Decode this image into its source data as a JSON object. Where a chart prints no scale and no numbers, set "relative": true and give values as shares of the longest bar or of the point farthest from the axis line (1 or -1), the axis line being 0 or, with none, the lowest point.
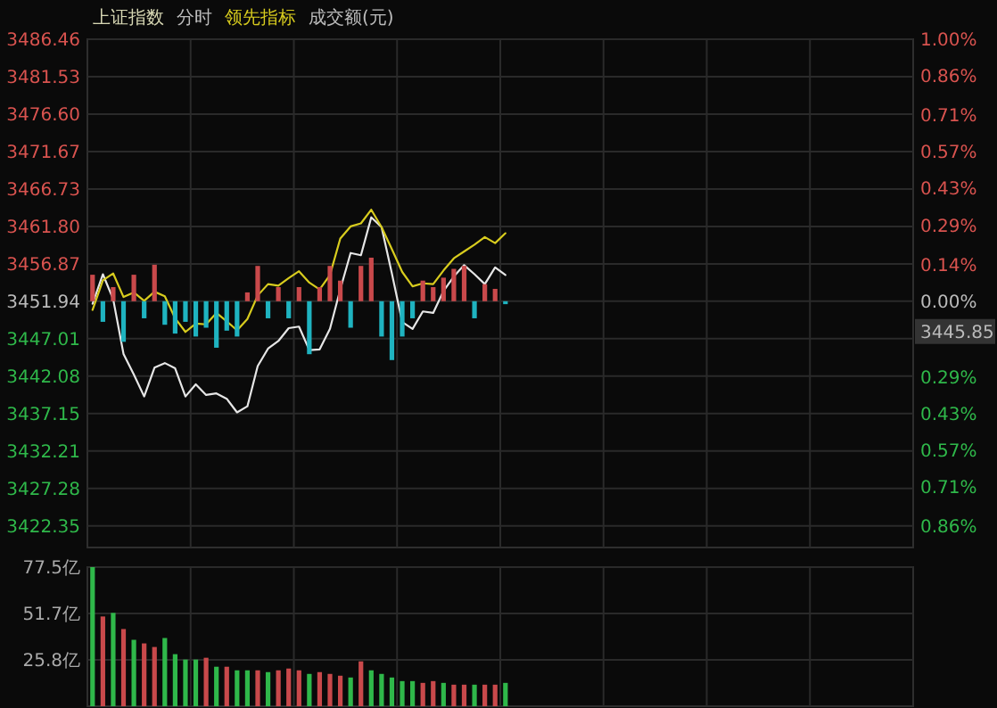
{
  "chart_data": [
    {
      "type": "line",
      "title": "上证指数",
      "subtitle": "分时",
      "grid": true,
      "categories": [
        null,
        null,
        null,
        null,
        null,
        null,
        null,
        null,
        null,
        null,
        null,
        null,
        null,
        null,
        null,
        null,
        null,
        null,
        null,
        null,
        null,
        null,
        null,
        null,
        null,
        null,
        null,
        null,
        null,
        null,
        null,
        null,
        null,
        null,
        null,
        null,
        null,
        null,
        null,
        null,
        null,
        null,
        null,
        null,
        null,
        null,
        null,
        null,
        null,
        null,
        null,
        null,
        null,
        null,
        null,
        null,
        null,
        null,
        null,
        null,
        null,
        null,
        null,
        null,
        null,
        null,
        null,
        null,
        null,
        null,
        null,
        null,
        null,
        null,
        null,
        null,
        null,
        null,
        null,
        null
      ],
      "ylim": [
        3419.5,
        3486.46
      ],
      "yticks": [
        {
          "value": 3486.46,
          "label": "3486.46"
        },
        {
          "value": 3481.53,
          "label": "3481.53"
        },
        {
          "value": 3476.6,
          "label": "3476.60"
        },
        {
          "value": 3471.67,
          "label": "3471.67"
        },
        {
          "value": 3466.73,
          "label": "3466.73"
        },
        {
          "value": 3461.8,
          "label": "3461.80"
        },
        {
          "value": 3456.87,
          "label": "3456.87"
        },
        {
          "value": 3451.94,
          "label": "3451.94"
        },
        {
          "value": 3447.01,
          "label": "3447.01"
        },
        {
          "value": 3442.08,
          "label": "3442.08"
        },
        {
          "value": 3437.15,
          "label": "3437.15"
        },
        {
          "value": 3432.21,
          "label": "3432.21"
        },
        {
          "value": 3427.28,
          "label": "3427.28"
        },
        {
          "value": 3422.35,
          "label": "3422.35"
        }
      ],
      "y2lim": [
        -0.94,
        1.0
      ],
      "y2ticks": [
        {
          "value": 1.0,
          "label": "1.00%"
        },
        {
          "value": 0.86,
          "label": "0.86%"
        },
        {
          "value": 0.71,
          "label": "0.71%"
        },
        {
          "value": 0.57,
          "label": "0.57%"
        },
        {
          "value": 0.43,
          "label": "0.43%"
        },
        {
          "value": 0.29,
          "label": "0.29%"
        },
        {
          "value": 0.14,
          "label": "0.14%"
        },
        {
          "value": 0.0,
          "label": "0.00%"
        },
        {
          "value": -0.29,
          "label": "0.29%"
        },
        {
          "value": -0.43,
          "label": "0.43%"
        },
        {
          "value": -0.57,
          "label": "0.57%"
        },
        {
          "value": -0.71,
          "label": "0.71%"
        },
        {
          "value": -0.86,
          "label": "0.86%"
        }
      ],
      "annotations": [
        "3445.85",
        "成交额(元)"
      ],
      "series": [
        {
          "color": "#e6e6e6",
          "values": [
            3451.6,
            3455.5,
            3452.2,
            3445.0,
            3442.3,
            3439.4,
            3443.2,
            3443.8,
            3443.1,
            3439.4,
            3441.0,
            3439.6,
            3439.8,
            3439.1,
            3437.3,
            3438.1,
            3443.4,
            3445.7,
            3446.7,
            3448.4,
            3448.6,
            3445.5,
            3445.6,
            3448.3,
            3453.5,
            3458.3,
            3458.0,
            3463.0,
            3461.7,
            3455.6,
            3449.2,
            3448.3,
            3450.6,
            3450.4,
            3453.3,
            3455.2,
            3456.7,
            3455.5,
            3454.2,
            3456.4,
            3455.4,
            null,
            null,
            null,
            null,
            null,
            null,
            null,
            null,
            null,
            null,
            null,
            null,
            null,
            null,
            null,
            null,
            null,
            null,
            null,
            null,
            null,
            null,
            null,
            null,
            null,
            null,
            null,
            null,
            null,
            null,
            null,
            null,
            null,
            null,
            null,
            null,
            null,
            null,
            null
          ]
        },
        {
          "name": "领先指标",
          "color": "#d8cc1e",
          "values": [
            3450.8,
            3454.7,
            3455.6,
            3452.5,
            3453.1,
            3452.0,
            3453.2,
            3452.6,
            3449.7,
            3447.9,
            3449.0,
            3448.9,
            3450.4,
            3449.3,
            3448.1,
            3449.6,
            3452.7,
            3454.2,
            3454.0,
            3455.0,
            3455.9,
            3454.4,
            3453.5,
            3455.4,
            3460.2,
            3461.8,
            3462.2,
            3464.0,
            3461.7,
            3458.8,
            3455.8,
            3453.9,
            3454.3,
            3454.2,
            3456.0,
            3457.6,
            3458.5,
            3459.4,
            3460.4,
            3459.6,
            3460.9,
            null,
            null,
            null,
            null,
            null,
            null,
            null,
            null,
            null,
            null,
            null,
            null,
            null,
            null,
            null,
            null,
            null,
            null,
            null,
            null,
            null,
            null,
            null,
            null,
            null,
            null,
            null,
            null,
            null,
            null,
            null,
            null,
            null,
            null,
            null,
            null,
            null,
            null,
            null
          ]
        }
      ]
    },
    {
      "type": "bar",
      "relative": true,
      "categories": [
        null,
        null,
        null,
        null,
        null,
        null,
        null,
        null,
        null,
        null,
        null,
        null,
        null,
        null,
        null,
        null,
        null,
        null,
        null,
        null,
        null,
        null,
        null,
        null,
        null,
        null,
        null,
        null,
        null,
        null,
        null,
        null,
        null,
        null,
        null,
        null,
        null,
        null,
        null,
        null,
        null,
        null,
        null,
        null,
        null,
        null,
        null,
        null,
        null,
        null,
        null,
        null,
        null,
        null,
        null,
        null,
        null,
        null,
        null,
        null,
        null,
        null,
        null,
        null,
        null,
        null,
        null,
        null,
        null,
        null,
        null,
        null,
        null,
        null,
        null,
        null,
        null,
        null,
        null,
        null
      ],
      "values": [
        0.45,
        -0.35,
        0.24,
        -0.69,
        0.45,
        -0.29,
        0.62,
        -0.4,
        -0.55,
        -0.35,
        -0.6,
        -0.45,
        -0.79,
        -0.5,
        -0.6,
        0.15,
        0.6,
        -0.29,
        0.24,
        -0.29,
        0.24,
        -0.9,
        0.24,
        0.6,
        0.35,
        -0.45,
        0.6,
        0.74,
        -0.6,
        -1,
        -0.6,
        -0.29,
        0.35,
        0.24,
        0.4,
        0.55,
        0.6,
        -0.29,
        0.29,
        0.21,
        -0.05,
        null,
        null,
        null,
        null,
        null,
        null,
        null,
        null,
        null,
        null,
        null,
        null,
        null,
        null,
        null,
        null,
        null,
        null,
        null,
        null,
        null,
        null,
        null,
        null,
        null,
        null,
        null,
        null,
        null,
        null,
        null,
        null,
        null,
        null,
        null,
        null,
        null,
        null,
        null
      ],
      "colors": [
        "#c9494b",
        "#1fb3c0",
        "#c9494b",
        "#1fb3c0",
        "#c9494b",
        "#1fb3c0",
        "#c9494b",
        "#1fb3c0",
        "#1fb3c0",
        "#1fb3c0",
        "#1fb3c0",
        "#1fb3c0",
        "#1fb3c0",
        "#1fb3c0",
        "#1fb3c0",
        "#c9494b",
        "#c9494b",
        "#1fb3c0",
        "#c9494b",
        "#1fb3c0",
        "#c9494b",
        "#1fb3c0",
        "#c9494b",
        "#c9494b",
        "#c9494b",
        "#1fb3c0",
        "#c9494b",
        "#c9494b",
        "#1fb3c0",
        "#1fb3c0",
        "#1fb3c0",
        "#1fb3c0",
        "#c9494b",
        "#c9494b",
        "#c9494b",
        "#c9494b",
        "#c9494b",
        "#1fb3c0",
        "#c9494b",
        "#c9494b",
        "#1fb3c0",
        null,
        null,
        null,
        null,
        null,
        null,
        null,
        null,
        null,
        null,
        null,
        null,
        null,
        null,
        null,
        null,
        null,
        null,
        null,
        null,
        null,
        null,
        null,
        null,
        null,
        null,
        null,
        null,
        null,
        null,
        null,
        null,
        null,
        null,
        null,
        null,
        null,
        null,
        null
      ]
    },
    {
      "type": "bar",
      "grid": true,
      "categories": [
        null,
        null,
        null,
        null,
        null,
        null,
        null,
        null,
        null,
        null,
        null,
        null,
        null,
        null,
        null,
        null,
        null,
        null,
        null,
        null,
        null,
        null,
        null,
        null,
        null,
        null,
        null,
        null,
        null,
        null,
        null,
        null,
        null,
        null,
        null,
        null,
        null,
        null,
        null,
        null,
        null,
        null,
        null,
        null,
        null,
        null,
        null,
        null,
        null,
        null,
        null,
        null,
        null,
        null,
        null,
        null,
        null,
        null,
        null,
        null,
        null,
        null,
        null,
        null,
        null,
        null,
        null,
        null,
        null,
        null,
        null,
        null,
        null,
        null,
        null,
        null,
        null,
        null,
        null,
        null
      ],
      "ylim": [
        0,
        77.5
      ],
      "yticks": [
        {
          "value": 25.8,
          "label": "25.8亿"
        },
        {
          "value": 51.7,
          "label": "51.7亿"
        },
        {
          "value": 77.5,
          "label": "77.5亿"
        }
      ],
      "values": [
        77.5,
        50,
        52,
        43,
        37,
        35,
        33,
        38,
        29,
        26,
        26,
        27,
        22,
        22,
        20,
        20,
        20,
        19,
        20,
        21,
        20,
        18,
        19,
        18,
        17,
        16,
        25,
        20,
        18,
        16,
        14,
        14,
        13,
        14,
        13,
        12,
        12,
        12,
        12,
        12,
        13,
        null,
        null,
        null,
        null,
        null,
        null,
        null,
        null,
        null,
        null,
        null,
        null,
        null,
        null,
        null,
        null,
        null,
        null,
        null,
        null,
        null,
        null,
        null,
        null,
        null,
        null,
        null,
        null,
        null,
        null,
        null,
        null,
        null,
        null,
        null,
        null,
        null,
        null,
        null
      ],
      "colors": [
        "#2fb84a",
        "#c9494b",
        "#2fb84a",
        "#c9494b",
        "#2fb84a",
        "#c9494b",
        "#c9494b",
        "#2fb84a",
        "#2fb84a",
        "#2fb84a",
        "#2fb84a",
        "#c9494b",
        "#2fb84a",
        "#c9494b",
        "#2fb84a",
        "#2fb84a",
        "#c9494b",
        "#2fb84a",
        "#c9494b",
        "#c9494b",
        "#c9494b",
        "#2fb84a",
        "#c9494b",
        "#c9494b",
        "#c9494b",
        "#2fb84a",
        "#c9494b",
        "#2fb84a",
        "#2fb84a",
        "#2fb84a",
        "#2fb84a",
        "#2fb84a",
        "#c9494b",
        "#c9494b",
        "#2fb84a",
        "#c9494b",
        "#c9494b",
        "#2fb84a",
        "#c9494b",
        "#c9494b",
        "#2fb84a",
        null,
        null,
        null,
        null,
        null,
        null,
        null,
        null,
        null,
        null,
        null,
        null,
        null,
        null,
        null,
        null,
        null,
        null,
        null,
        null,
        null,
        null,
        null,
        null,
        null,
        null,
        null,
        null,
        null,
        null,
        null,
        null,
        null,
        null,
        null,
        null,
        null,
        null,
        null
      ]
    }
  ]
}
